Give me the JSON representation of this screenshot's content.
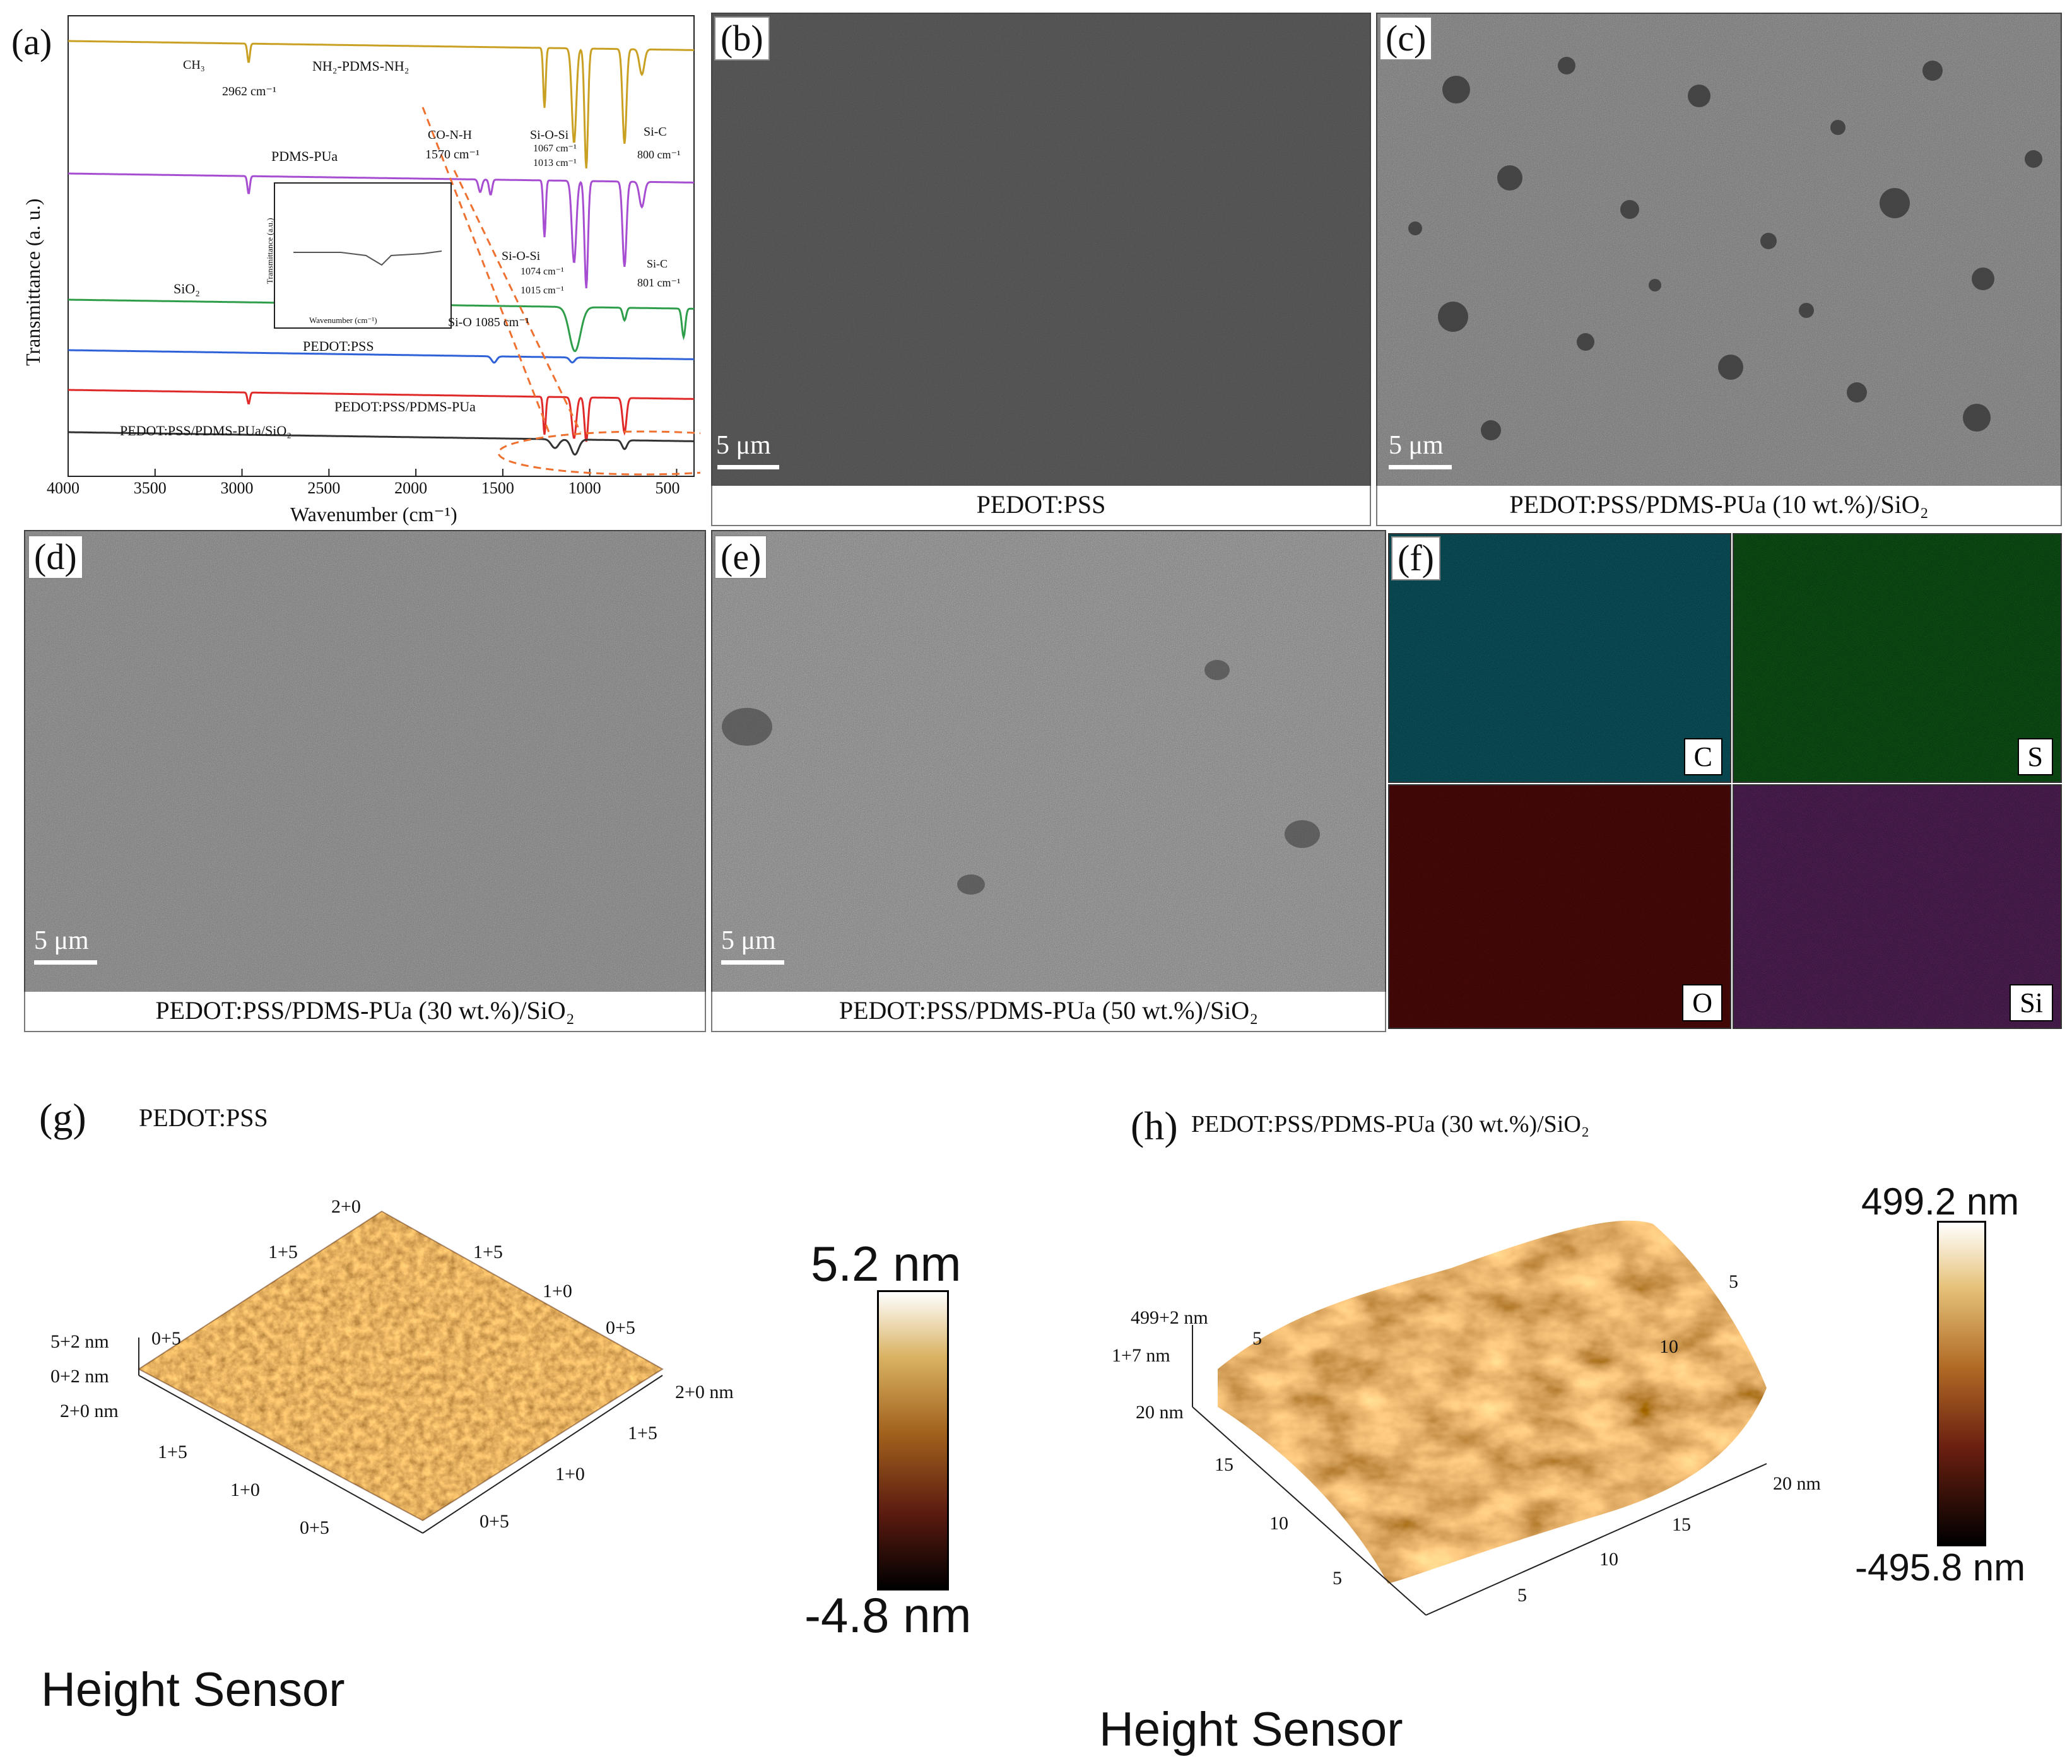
{
  "panels": {
    "a": {
      "label": "(a)",
      "chart_data": {
        "type": "line",
        "xlabel": "Wavenumber (cm⁻¹)",
        "ylabel": "Transmittance (a. u.)",
        "xlim": [
          4000,
          400
        ],
        "xticks": [
          4000,
          3500,
          3000,
          2500,
          2000,
          1500,
          1000,
          500
        ],
        "series": [
          {
            "name": "NH₂-PDMS-NH₂",
            "color": "#c9a022"
          },
          {
            "name": "PDMS-PUa",
            "color": "#a64dd1"
          },
          {
            "name": "SiO₂",
            "color": "#2e9e4a"
          },
          {
            "name": "PEDOT:PSS",
            "color": "#2f62d8"
          },
          {
            "name": "PEDOT:PSS/PDMS-PUa",
            "color": "#e02a2a"
          },
          {
            "name": "PEDOT:PSS/PDMS-PUa/SiO₂",
            "color": "#333333"
          }
        ],
        "annotations": {
          "ch3": "CH₃",
          "peak2962": "2962 cm⁻¹",
          "conh": "CO-N-H",
          "peak1570": "1570 cm⁻¹",
          "siosi1": "Si-O-Si",
          "peak1067": "1067 cm⁻¹",
          "peak1013": "1013 cm⁻¹",
          "sic1": "Si-C",
          "peak800": "800 cm⁻¹",
          "siosi2": "Si-O-Si",
          "peak1074": "1074 cm⁻¹",
          "peak1015": "1015 cm⁻¹",
          "sic2": "Si-C",
          "peak801": "801 cm⁻¹",
          "sio": "Si-O 1085 cm⁻¹",
          "inset_ylabel": "Transmittance (a.u.)",
          "inset_xlabel": "Wavenumber (cm⁻¹)"
        }
      }
    },
    "b": {
      "label": "(b)",
      "scale": "5 μm",
      "caption": "PEDOT:PSS"
    },
    "c": {
      "label": "(c)",
      "scale": "5 μm",
      "caption": "PEDOT:PSS/PDMS-PUa (10 wt.%)/SiO₂"
    },
    "d": {
      "label": "(d)",
      "scale": "5 μm",
      "caption": "PEDOT:PSS/PDMS-PUa (30 wt.%)/SiO₂"
    },
    "e": {
      "label": "(e)",
      "scale": "5 μm",
      "caption": "PEDOT:PSS/PDMS-PUa (50 wt.%)/SiO₂"
    },
    "f": {
      "label": "(f)",
      "maps": [
        {
          "element": "C",
          "color": "#22c6d6"
        },
        {
          "element": "S",
          "color": "#2fd14a"
        },
        {
          "element": "O",
          "color": "#c8201e"
        },
        {
          "element": "Si",
          "color": "#c060c8"
        }
      ]
    },
    "g": {
      "label": "(g)",
      "title": "PEDOT:PSS",
      "zlabels": [
        "5+2 nm",
        "0+2 nm"
      ],
      "axis_left": [
        "2+0 nm",
        "1+5",
        "1+0",
        "0+5"
      ],
      "axis_right": [
        "2+0 nm",
        "1+5",
        "1+0",
        "0+5"
      ],
      "axis_back_left": [
        "0+5",
        "1+5",
        "2+0"
      ],
      "axis_back_right": [
        "1+5",
        "1+0",
        "0+5"
      ],
      "colorbar_max": "5.2 nm",
      "colorbar_min": "-4.8 nm",
      "footer": "Height Sensor"
    },
    "h": {
      "label": "(h)",
      "title": "PEDOT:PSS/PDMS-PUa (30 wt.%)/SiO₂",
      "zlabels": [
        "499+2 nm",
        "1+7 nm"
      ],
      "axis_left": [
        "20 nm",
        "15",
        "10",
        "5"
      ],
      "axis_right": [
        "20 nm",
        "15",
        "10",
        "5"
      ],
      "axis_back": [
        "5",
        "10",
        "5"
      ],
      "colorbar_max": "499.2 nm",
      "colorbar_min": "-495.8 nm",
      "footer": "Height Sensor"
    }
  }
}
